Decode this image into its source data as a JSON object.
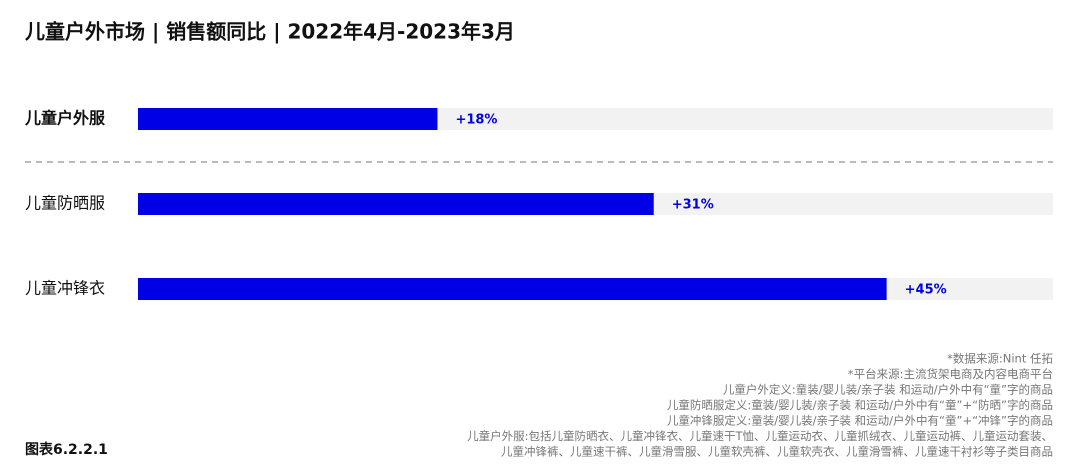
{
  "chart_data": {
    "type": "bar",
    "orientation": "horizontal",
    "title": "儿童户外市场 | 销售额同比 | 2022年4月-2023年3月",
    "categories": [
      "儿童户外服",
      "儿童防晒服",
      "儿童冲锋衣"
    ],
    "values": [
      18,
      31,
      45
    ],
    "value_labels": [
      "+18%",
      "+31%",
      "+45%"
    ],
    "color": "#0000e6",
    "xlim": [
      0,
      55
    ],
    "notes": [
      "*数据来源:Nint 任拓",
      "*平台来源:主流货架电商及内容电商平台",
      "儿童户外定义:童装/婴儿装/亲子装 和运动/户外中有“童”字的商品",
      "儿童防晒服定义:童装/婴儿装/亲子装 和运动/户外中有“童”+“防晒”字的商品",
      "儿童冲锋服定义:童装/婴儿装/亲子装 和运动/户外中有“童”+“冲锋”字的商品",
      "儿童户外服:包括儿童防晒衣、儿童冲锋衣、儿童速干T恤、儿童运动衣、儿童抓绒衣、儿童运动裤、儿童运动套装、",
      "儿童冲锋裤、儿童速干裤、儿童滑雪服、儿童软壳裤、儿童软壳衣、儿童滑雪裤、儿童速干衬衫等子类目商品"
    ],
    "figure_label": "图表6.2.2.1"
  }
}
